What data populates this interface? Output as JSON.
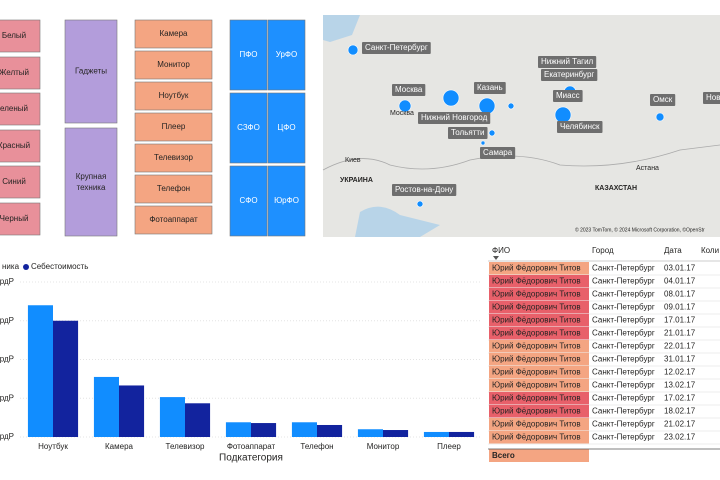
{
  "slicers": {
    "colors": [
      "Белый",
      "Желтый",
      "еленый",
      "Красный",
      "Синий",
      "Черный"
    ],
    "groups": [
      "Гаджеты",
      "Крупная техника"
    ],
    "products": [
      "Камера",
      "Монитор",
      "Ноутбук",
      "Плеер",
      "Телевизор",
      "Телефон",
      "Фотоаппарат"
    ],
    "regions": [
      "ПФО",
      "УрФО",
      "СЗФО",
      "ЦФО",
      "СФО",
      "ЮрФО"
    ]
  },
  "map": {
    "cities": [
      "Санкт-Петербург",
      "Москва",
      "Казань",
      "Нижний Новгород",
      "Тольятти",
      "Самара",
      "Ростов-на-Дону",
      "Нижний Тагил",
      "Екатеринбург",
      "Миасс",
      "Челябинск",
      "Омск",
      "Нов"
    ],
    "places": [
      "Москва",
      "Киев",
      "УКРАИНА",
      "КАЗАХСТАН",
      "Астана"
    ],
    "attribution": "© 2023 TomTom, © 2024 Microsoft Corporation, ©OpenStr"
  },
  "chart_data": {
    "type": "bar",
    "x_label": "Подкатегория",
    "categories": [
      "Ноутбук",
      "Камера",
      "Телевизор",
      "Фотоаппарат",
      "Телефон",
      "Монитор",
      "Плеер"
    ],
    "series": [
      {
        "name": "ника",
        "color": "#118dff",
        "values": [
          3.4,
          1.55,
          1.03,
          0.38,
          0.38,
          0.2,
          0.13
        ]
      },
      {
        "name": "Себестоимость",
        "color": "#12239e",
        "values": [
          3.0,
          1.33,
          0.87,
          0.36,
          0.31,
          0.18,
          0.13
        ]
      }
    ],
    "ylim": [
      0,
      4
    ],
    "yticks": [
      {
        "value": 0,
        "label": "лрдР"
      },
      {
        "value": 1,
        "label": "лрдР"
      },
      {
        "value": 2,
        "label": "лрдР"
      },
      {
        "value": 3,
        "label": "лрдР"
      },
      {
        "value": 4,
        "label": "лрдР"
      }
    ],
    "grid": true
  },
  "table": {
    "header": [
      "ФИО",
      "Город",
      "Дата",
      "Коли"
    ],
    "rows": [
      [
        "Юрий Фёдорович Титов",
        "Санкт-Петербург",
        "03.01.17"
      ],
      [
        "Юрий Фёдорович Титов",
        "Санкт-Петербург",
        "04.01.17"
      ],
      [
        "Юрий Фёдорович Титов",
        "Санкт-Петербург",
        "08.01.17"
      ],
      [
        "Юрий Фёдорович Титов",
        "Санкт-Петербург",
        "09.01.17"
      ],
      [
        "Юрий Фёдорович Титов",
        "Санкт-Петербург",
        "17.01.17"
      ],
      [
        "Юрий Фёдорович Титов",
        "Санкт-Петербург",
        "21.01.17"
      ],
      [
        "Юрий Фёдорович Титов",
        "Санкт-Петербург",
        "22.01.17"
      ],
      [
        "Юрий Фёдорович Титов",
        "Санкт-Петербург",
        "31.01.17"
      ],
      [
        "Юрий Фёдорович Титов",
        "Санкт-Петербург",
        "12.02.17"
      ],
      [
        "Юрий Фёдорович Титов",
        "Санкт-Петербург",
        "13.02.17"
      ],
      [
        "Юрий Фёдорович Титов",
        "Санкт-Петербург",
        "17.02.17"
      ],
      [
        "Юрий Фёдорович Титов",
        "Санкт-Петербург",
        "18.02.17"
      ],
      [
        "Юрий Фёдорович Титов",
        "Санкт-Петербург",
        "21.02.17"
      ],
      [
        "Юрий Фёдорович Титов",
        "Санкт-Петербург",
        "23.02.17"
      ]
    ],
    "row_colors": [
      "#f4a582",
      "#e8606a",
      "#e8606a",
      "#e8606a",
      "#e8606a",
      "#e8606a",
      "#f4a582",
      "#f4a582",
      "#f4a582",
      "#f4a582",
      "#e8606a",
      "#e8606a",
      "#f4a582",
      "#f4a582"
    ],
    "total": "Всего"
  }
}
